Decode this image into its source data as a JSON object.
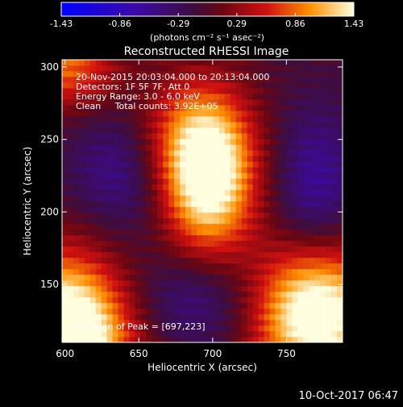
{
  "chart_data": {
    "type": "heatmap",
    "title": "Reconstructed RHESSI Image",
    "xlabel": "Heliocentric X (arcsec)",
    "ylabel": "Heliocentric Y (arcsec)",
    "xlim": [
      598,
      788
    ],
    "ylim": [
      110,
      305
    ],
    "x_ticks": [
      600,
      650,
      700,
      750
    ],
    "y_ticks": [
      150,
      200,
      250,
      300
    ],
    "colorbar": {
      "range": [
        -1.43,
        1.43
      ],
      "ticks": [
        "-1.43",
        "-0.86",
        "-0.29",
        "0.29",
        "0.86",
        "1.43"
      ],
      "unit_text": "(photons cm⁻² s⁻¹ asec⁻²)"
    },
    "annotations": [
      "20-Nov-2015 20:03:04.000 to 20:13:04.000",
      "Detectors: 1F 5F 7F, Att 0",
      "Energy Range: 3.0 - 6.0 keV",
      "Clean     Total counts: 3.92E+05"
    ],
    "peak_label": "Location of Peak = [697,223]",
    "peak": [
      697,
      223
    ],
    "sources": [
      {
        "x": 697,
        "y": 223,
        "amp": 1.6,
        "sx": 22,
        "sy": 38
      },
      {
        "x": 680,
        "y": 250,
        "amp": 0.6,
        "sx": 30,
        "sy": 30
      },
      {
        "x": 600,
        "y": 110,
        "amp": 2.2,
        "sx": 30,
        "sy": 40
      },
      {
        "x": 770,
        "y": 130,
        "amp": 1.8,
        "sx": 30,
        "sy": 35
      },
      {
        "x": 600,
        "y": 300,
        "amp": 0.9,
        "sx": 25,
        "sy": 20
      },
      {
        "x": 640,
        "y": 230,
        "amp": -0.6,
        "sx": 25,
        "sy": 30
      },
      {
        "x": 770,
        "y": 215,
        "amp": -0.6,
        "sx": 20,
        "sy": 40
      },
      {
        "x": 690,
        "y": 140,
        "amp": -0.5,
        "sx": 30,
        "sy": 25
      }
    ]
  },
  "footer": {
    "timestamp": "10-Oct-2017 06:47"
  }
}
